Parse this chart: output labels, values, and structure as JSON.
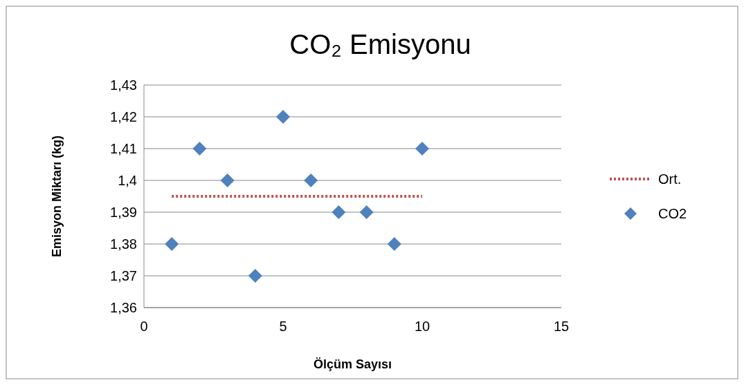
{
  "chart_data": {
    "type": "scatter",
    "title": "CO₂  Emisyonu",
    "xlabel": "Ölçüm Sayısı",
    "ylabel": "Emisyon Miktarı (kg)",
    "xlim": [
      0,
      15
    ],
    "xticks": [
      0,
      5,
      10,
      15
    ],
    "ylim": [
      1.36,
      1.43
    ],
    "yticks": [
      {
        "value": 1.36,
        "label": "1,36"
      },
      {
        "value": 1.37,
        "label": "1,37"
      },
      {
        "value": 1.38,
        "label": "1,38"
      },
      {
        "value": 1.39,
        "label": "1,39"
      },
      {
        "value": 1.4,
        "label": "1,4"
      },
      {
        "value": 1.41,
        "label": "1,41"
      },
      {
        "value": 1.42,
        "label": "1,42"
      },
      {
        "value": 1.43,
        "label": "1,43"
      }
    ],
    "grid": "y",
    "legend": "right",
    "series": [
      {
        "name": "Ort.",
        "type": "line",
        "color": "#c0504d",
        "line_style": "dotted",
        "marker": "none",
        "x": [
          1,
          10
        ],
        "values": [
          1.395,
          1.395
        ]
      },
      {
        "name": "CO2",
        "color": "#4f81bd",
        "marker": "diamond",
        "x": [
          1,
          2,
          3,
          4,
          5,
          6,
          7,
          8,
          9,
          10
        ],
        "values": [
          1.38,
          1.41,
          1.4,
          1.37,
          1.42,
          1.4,
          1.39,
          1.39,
          1.38,
          1.41
        ]
      }
    ]
  }
}
